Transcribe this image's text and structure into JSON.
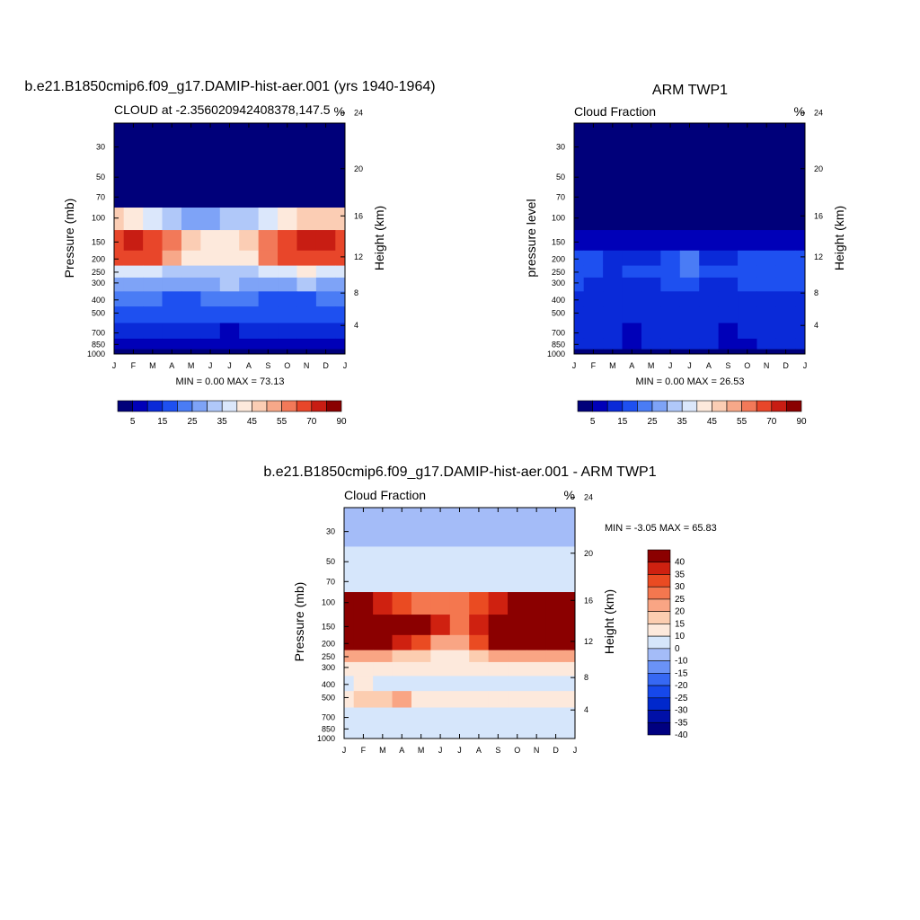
{
  "chart_data": [
    {
      "type": "heatmap",
      "title": "b.e21.B1850cmip6.f09_g17.DAMIP-hist-aer.001 (yrs 1940-1964)",
      "left_label": "CLOUD at -2.356020942408378,147.5",
      "right_label": "%",
      "ylabel": "Pressure (mb)",
      "ylabel_right": "Height (km)",
      "stats": "MIN =   0.00 MAX =  73.13",
      "x_ticks": [
        "J",
        "F",
        "M",
        "A",
        "M",
        "J",
        "J",
        "A",
        "S",
        "O",
        "N",
        "D",
        "J"
      ],
      "p_ticks": [
        "30",
        "50",
        "70",
        "100",
        "150",
        "200",
        "250",
        "300",
        "400",
        "500",
        "700",
        "850",
        "1000"
      ],
      "h_ticks": [
        "24",
        "20",
        "16",
        "12",
        "8",
        "4"
      ],
      "colorbar": {
        "orientation": "horizontal",
        "labels": [
          "5",
          "15",
          "25",
          "35",
          "45",
          "55",
          "70",
          "90"
        ]
      },
      "levels": [
        30,
        50,
        70,
        100,
        150,
        200,
        250,
        300,
        400,
        500,
        700,
        850,
        1000
      ],
      "values": [
        [
          0,
          0,
          0,
          0,
          0,
          0,
          0,
          0,
          0,
          0,
          0,
          0,
          0
        ],
        [
          1,
          1,
          1,
          1,
          1,
          1,
          1,
          1,
          1,
          1,
          1,
          1,
          1
        ],
        [
          3,
          3,
          3,
          3,
          2,
          2,
          2,
          2,
          3,
          3,
          3,
          3,
          3
        ],
        [
          45,
          42,
          38,
          32,
          28,
          28,
          30,
          33,
          38,
          42,
          46,
          48,
          45
        ],
        [
          65,
          73,
          66,
          55,
          45,
          40,
          40,
          45,
          58,
          66,
          72,
          70,
          65
        ],
        [
          60,
          65,
          62,
          50,
          42,
          40,
          40,
          44,
          55,
          60,
          65,
          62,
          60
        ],
        [
          38,
          38,
          36,
          32,
          30,
          30,
          32,
          34,
          36,
          38,
          40,
          38,
          38
        ],
        [
          28,
          28,
          27,
          26,
          25,
          28,
          30,
          28,
          27,
          28,
          30,
          28,
          28
        ],
        [
          22,
          22,
          20,
          16,
          18,
          22,
          24,
          22,
          18,
          16,
          18,
          22,
          22
        ],
        [
          16,
          16,
          16,
          15,
          16,
          16,
          17,
          17,
          16,
          16,
          16,
          16,
          16
        ],
        [
          10,
          10,
          10,
          10,
          10,
          10,
          9,
          10,
          10,
          10,
          10,
          10,
          10
        ],
        [
          7,
          7,
          7,
          7,
          7,
          7,
          6,
          7,
          7,
          6,
          7,
          7,
          7
        ],
        [
          4,
          4,
          4,
          4,
          4,
          4,
          4,
          4,
          4,
          4,
          4,
          4,
          4
        ]
      ]
    },
    {
      "type": "heatmap",
      "title": "ARM TWP1",
      "left_label": "Cloud Fraction",
      "right_label": "%",
      "ylabel": "pressure level",
      "ylabel_right": "Height (km)",
      "stats": "MIN =   0.00 MAX =  26.53",
      "x_ticks": [
        "J",
        "F",
        "M",
        "A",
        "M",
        "J",
        "J",
        "A",
        "S",
        "O",
        "N",
        "D",
        "J"
      ],
      "p_ticks": [
        "30",
        "50",
        "70",
        "100",
        "150",
        "200",
        "250",
        "300",
        "400",
        "500",
        "700",
        "850",
        "1000"
      ],
      "h_ticks": [
        "24",
        "20",
        "16",
        "12",
        "8",
        "4"
      ],
      "colorbar": {
        "orientation": "horizontal",
        "labels": [
          "5",
          "15",
          "25",
          "35",
          "45",
          "55",
          "70",
          "90"
        ]
      },
      "levels": [
        30,
        50,
        70,
        100,
        150,
        200,
        250,
        300,
        400,
        500,
        700,
        850,
        1000
      ],
      "values": [
        [
          0,
          0,
          0,
          0,
          0,
          0,
          0,
          0,
          0,
          0,
          0,
          0,
          0
        ],
        [
          0,
          0,
          0,
          0,
          0,
          0,
          0,
          0,
          0,
          0,
          0,
          0,
          0
        ],
        [
          0,
          0,
          0,
          0,
          0,
          0,
          0,
          0,
          0,
          0,
          0,
          0,
          0
        ],
        [
          2,
          2,
          2,
          2,
          1,
          1,
          1,
          1,
          1,
          1,
          2,
          2,
          2
        ],
        [
          8,
          8,
          7,
          7,
          6,
          6,
          6,
          6,
          6,
          7,
          7,
          8,
          8
        ],
        [
          15,
          16,
          14,
          13,
          14,
          18,
          20,
          14,
          13,
          15,
          17,
          16,
          15
        ],
        [
          16,
          15,
          14,
          15,
          15,
          18,
          22,
          17,
          15,
          16,
          18,
          16,
          16
        ],
        [
          15,
          14,
          13,
          13,
          14,
          15,
          16,
          14,
          14,
          15,
          16,
          15,
          15
        ],
        [
          14,
          13,
          13,
          11,
          13,
          14,
          14,
          14,
          13,
          13,
          13,
          14,
          14
        ],
        [
          14,
          13,
          12,
          10,
          12,
          13,
          13,
          12,
          12,
          12,
          13,
          13,
          14
        ],
        [
          12,
          12,
          11,
          9,
          11,
          12,
          11,
          11,
          9,
          10,
          11,
          12,
          12
        ],
        [
          11,
          10,
          10,
          8,
          10,
          11,
          10,
          10,
          8,
          9,
          10,
          11,
          11
        ],
        [
          4,
          4,
          4,
          4,
          4,
          4,
          4,
          4,
          4,
          4,
          4,
          4,
          4
        ]
      ]
    },
    {
      "type": "heatmap",
      "title": "b.e21.B1850cmip6.f09_g17.DAMIP-hist-aer.001 - ARM TWP1",
      "left_label": "Cloud Fraction",
      "right_label": "%",
      "ylabel": "Pressure (mb)",
      "ylabel_right": "Height (km)",
      "stats": "MIN =  -3.05 MAX =  65.83",
      "x_ticks": [
        "J",
        "F",
        "M",
        "A",
        "M",
        "J",
        "J",
        "A",
        "S",
        "O",
        "N",
        "D",
        "J"
      ],
      "p_ticks": [
        "30",
        "50",
        "70",
        "100",
        "150",
        "200",
        "250",
        "300",
        "400",
        "500",
        "700",
        "850",
        "1000"
      ],
      "h_ticks": [
        "24",
        "20",
        "16",
        "12",
        "8",
        "4"
      ],
      "colorbar": {
        "orientation": "vertical",
        "labels": [
          "40",
          "35",
          "30",
          "25",
          "20",
          "15",
          "10",
          "0",
          "-10",
          "-15",
          "-20",
          "-25",
          "-30",
          "-35",
          "-40"
        ]
      },
      "levels": [
        30,
        50,
        70,
        100,
        150,
        200,
        250,
        300,
        400,
        500,
        700,
        850,
        1000
      ],
      "values": [
        [
          -1,
          -1,
          -1,
          -1,
          -1,
          -1,
          -1,
          -1,
          -1,
          -1,
          -1,
          -1,
          -1
        ],
        [
          2,
          2,
          2,
          2,
          2,
          2,
          2,
          2,
          2,
          2,
          2,
          2,
          2
        ],
        [
          3,
          3,
          3,
          3,
          3,
          3,
          3,
          3,
          3,
          3,
          3,
          3,
          3
        ],
        [
          44,
          42,
          38,
          32,
          28,
          28,
          29,
          32,
          37,
          41,
          44,
          46,
          44
        ],
        [
          60,
          65,
          60,
          50,
          42,
          36,
          28,
          35,
          50,
          58,
          62,
          62,
          60
        ],
        [
          45,
          50,
          48,
          38,
          30,
          24,
          22,
          30,
          42,
          46,
          48,
          46,
          45
        ],
        [
          22,
          23,
          22,
          18,
          16,
          14,
          13,
          16,
          22,
          24,
          23,
          22,
          22
        ],
        [
          13,
          14,
          14,
          13,
          12,
          12,
          12,
          12,
          12,
          12,
          13,
          13,
          13
        ],
        [
          9,
          10,
          9,
          8,
          7,
          7,
          7,
          7,
          8,
          6,
          4,
          6,
          9
        ],
        [
          14,
          16,
          18,
          22,
          14,
          10,
          10,
          10,
          12,
          10,
          10,
          12,
          14
        ],
        [
          3,
          3,
          3,
          3,
          2,
          2,
          1,
          1,
          1,
          2,
          2,
          3,
          3
        ],
        [
          2,
          2,
          2,
          2,
          1,
          1,
          1,
          1,
          1,
          1,
          2,
          2,
          2
        ],
        [
          1,
          1,
          1,
          1,
          1,
          1,
          1,
          1,
          1,
          1,
          1,
          1,
          1
        ]
      ]
    }
  ]
}
